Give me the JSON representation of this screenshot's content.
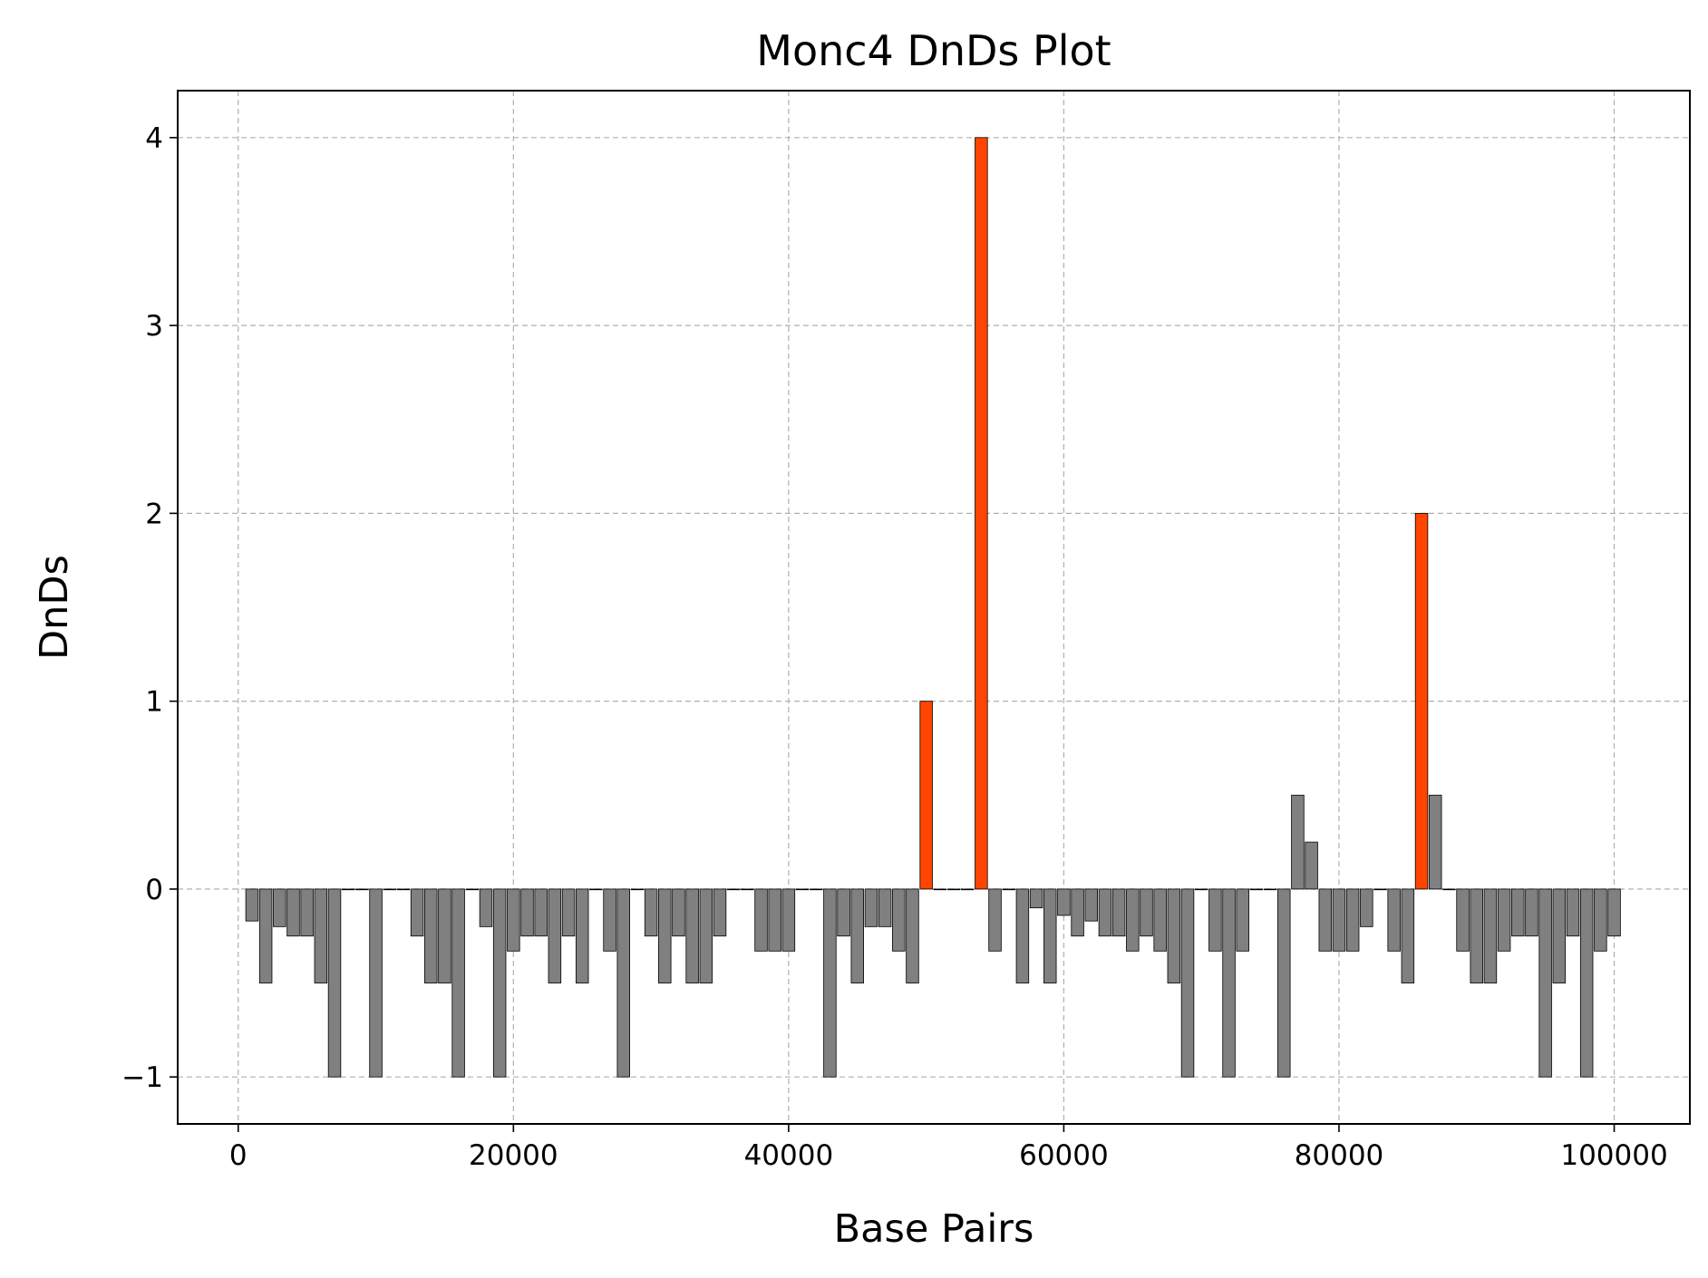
{
  "chart_data": {
    "type": "bar",
    "title": "Monc4 DnDs Plot",
    "xlabel": "Base Pairs",
    "ylabel": "DnDs",
    "xlim": [
      -4400,
      105500
    ],
    "ylim": [
      -1.25,
      4.25
    ],
    "xticks": [
      0,
      20000,
      40000,
      60000,
      80000,
      100000
    ],
    "xtick_labels": [
      "0",
      "20000",
      "40000",
      "60000",
      "80000",
      "100000"
    ],
    "yticks": [
      -1,
      0,
      1,
      2,
      3,
      4
    ],
    "ytick_labels": [
      "−1",
      "0",
      "1",
      "2",
      "3",
      "4"
    ],
    "grid": true,
    "bar_width": 900,
    "colors": {
      "normal": "#808080",
      "highlight": "#ff4500",
      "edge": "#000000"
    },
    "x": [
      1000,
      2000,
      3000,
      4000,
      5000,
      6000,
      7000,
      8000,
      9000,
      10000,
      11000,
      12000,
      13000,
      14000,
      15000,
      16000,
      17000,
      18000,
      19000,
      20000,
      21000,
      22000,
      23000,
      24000,
      25000,
      26000,
      27000,
      28000,
      29000,
      30000,
      31000,
      32000,
      33000,
      34000,
      35000,
      36000,
      37000,
      38000,
      39000,
      40000,
      41000,
      42000,
      43000,
      44000,
      45000,
      46000,
      47000,
      48000,
      49000,
      50000,
      51000,
      52000,
      53000,
      54000,
      55000,
      56000,
      57000,
      58000,
      59000,
      60000,
      61000,
      62000,
      63000,
      64000,
      65000,
      66000,
      67000,
      68000,
      69000,
      70000,
      71000,
      72000,
      73000,
      74000,
      75000,
      76000,
      77000,
      78000,
      79000,
      80000,
      81000,
      82000,
      83000,
      84000,
      85000,
      86000,
      87000,
      88000,
      89000,
      90000,
      91000,
      92000,
      93000,
      94000,
      95000,
      96000,
      97000,
      98000,
      99000,
      100000
    ],
    "values": [
      -0.17,
      -0.5,
      -0.2,
      -0.25,
      -0.25,
      -0.5,
      -1,
      0,
      0,
      -1,
      0,
      0,
      -0.25,
      -0.5,
      -0.5,
      -1,
      0,
      -0.2,
      -1,
      -0.33,
      -0.25,
      -0.25,
      -0.5,
      -0.25,
      -0.5,
      0,
      -0.33,
      -1,
      0,
      -0.25,
      -0.5,
      -0.25,
      -0.5,
      -0.5,
      -0.25,
      0,
      0,
      -0.33,
      -0.33,
      -0.33,
      0,
      0,
      -1,
      -0.25,
      -0.5,
      -0.2,
      -0.2,
      -0.33,
      -0.5,
      1,
      0,
      0,
      0,
      4,
      -0.33,
      0,
      -0.5,
      -0.1,
      -0.5,
      -0.14,
      -0.25,
      -0.17,
      -0.25,
      -0.25,
      -0.33,
      -0.25,
      -0.33,
      -0.5,
      -1,
      0,
      -0.33,
      -1,
      -0.33,
      0,
      0,
      -1,
      0.5,
      0.25,
      -0.33,
      -0.33,
      -0.33,
      -0.2,
      0,
      -0.33,
      -0.5,
      2,
      0.5,
      0,
      -0.33,
      -0.5,
      -0.5,
      -0.33,
      -0.25,
      -0.25,
      -1,
      -0.5,
      -0.25,
      -1,
      -0.33,
      -0.25
    ]
  }
}
